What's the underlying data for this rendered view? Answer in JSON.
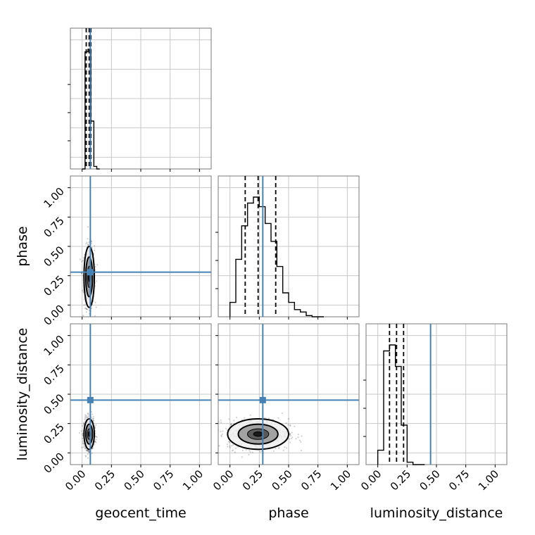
{
  "chart_data": {
    "type": "corner",
    "parameters": [
      "geocent_time",
      "phase",
      "luminosity_distance"
    ],
    "axis_range": [
      -0.1,
      1.1
    ],
    "ticks": [
      0.0,
      0.25,
      0.5,
      0.75,
      1.0
    ],
    "tick_labels": [
      "0.00",
      "0.25",
      "0.50",
      "0.75",
      "1.00"
    ],
    "grid": true,
    "truths": {
      "geocent_time": 0.07,
      "phase": 0.28,
      "luminosity_distance": 0.45
    },
    "truth_color": "#4682b4",
    "quantiles": {
      "geocent_time": [
        0.035,
        0.06,
        0.075
      ],
      "phase": [
        0.13,
        0.24,
        0.39
      ],
      "luminosity_distance": [
        0.1,
        0.16,
        0.22
      ]
    },
    "histograms": {
      "geocent_time": {
        "edges": [
          0.0,
          0.025,
          0.05,
          0.075,
          0.1,
          0.125,
          0.15
        ],
        "counts": [
          0,
          0.93,
          0.95,
          0.38,
          0.02,
          0.0
        ]
      },
      "phase": {
        "edges": [
          0.0,
          0.05,
          0.1,
          0.15,
          0.2,
          0.25,
          0.3,
          0.35,
          0.4,
          0.45,
          0.5,
          0.55,
          0.6,
          0.65,
          0.7,
          0.75,
          0.8
        ],
        "counts": [
          0.12,
          0.48,
          0.76,
          0.95,
          1.0,
          0.92,
          0.78,
          0.63,
          0.42,
          0.2,
          0.12,
          0.06,
          0.04,
          0.01,
          0.0,
          0.0
        ]
      },
      "luminosity_distance": {
        "edges": [
          0.0,
          0.05,
          0.1,
          0.15,
          0.2,
          0.25,
          0.3,
          0.35,
          0.4
        ],
        "counts": [
          0.12,
          0.95,
          1.0,
          0.82,
          0.33,
          0.02,
          0.0,
          0.0
        ]
      }
    },
    "scatter_2d": [
      {
        "x": "geocent_time",
        "y": "phase",
        "x_mean": 0.06,
        "y_mean": 0.24,
        "x_sd": 0.022,
        "y_sd": 0.13
      },
      {
        "x": "geocent_time",
        "y": "luminosity_distance",
        "x_mean": 0.06,
        "y_mean": 0.16,
        "x_sd": 0.022,
        "y_sd": 0.065
      },
      {
        "x": "phase",
        "y": "luminosity_distance",
        "x_mean": 0.24,
        "y_mean": 0.16,
        "x_sd": 0.13,
        "y_sd": 0.065
      }
    ]
  }
}
